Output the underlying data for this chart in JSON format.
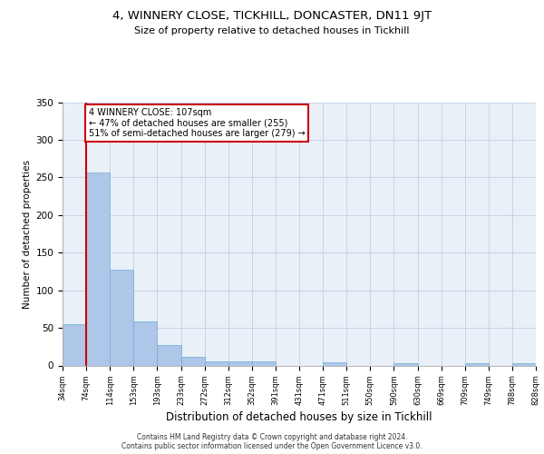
{
  "title1": "4, WINNERY CLOSE, TICKHILL, DONCASTER, DN11 9JT",
  "title2": "Size of property relative to detached houses in Tickhill",
  "xlabel": "Distribution of detached houses by size in Tickhill",
  "ylabel": "Number of detached properties",
  "categories": [
    "34sqm",
    "74sqm",
    "114sqm",
    "153sqm",
    "193sqm",
    "233sqm",
    "272sqm",
    "312sqm",
    "352sqm",
    "391sqm",
    "431sqm",
    "471sqm",
    "511sqm",
    "550sqm",
    "590sqm",
    "630sqm",
    "669sqm",
    "709sqm",
    "749sqm",
    "788sqm",
    "828sqm"
  ],
  "bar_heights": [
    55,
    257,
    127,
    58,
    27,
    12,
    6,
    6,
    5,
    0,
    0,
    4,
    0,
    0,
    3,
    0,
    0,
    3,
    0,
    3
  ],
  "bar_color": "#aec6e8",
  "bar_edge_color": "#6aaed6",
  "grid_color": "#c8d4e8",
  "background_color": "#eaf0f8",
  "red_line_x": 1.0,
  "annotation_text": "4 WINNERY CLOSE: 107sqm\n← 47% of detached houses are smaller (255)\n51% of semi-detached houses are larger (279) →",
  "annotation_box_color": "#ffffff",
  "annotation_box_edge_color": "#cc0000",
  "footer_text": "Contains HM Land Registry data © Crown copyright and database right 2024.\nContains public sector information licensed under the Open Government Licence v3.0.",
  "ylim": [
    0,
    350
  ],
  "yticks": [
    0,
    50,
    100,
    150,
    200,
    250,
    300,
    350
  ],
  "title1_fontsize": 9.5,
  "title2_fontsize": 8.0,
  "xlabel_fontsize": 8.5,
  "ylabel_fontsize": 7.5
}
